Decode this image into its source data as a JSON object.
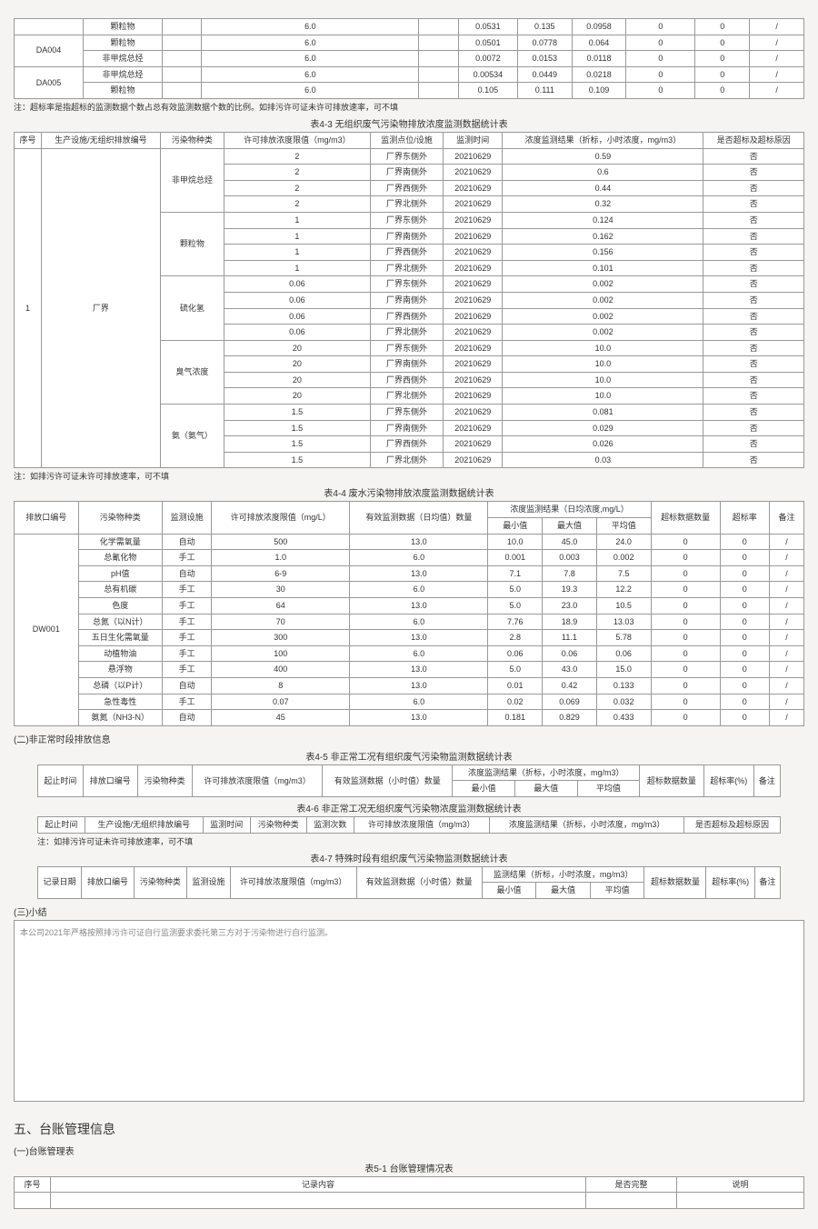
{
  "topTable": {
    "rows": [
      {
        "code": "",
        "p": "颗粒物",
        "c3": "",
        "c4": "6.0",
        "c5": "",
        "c6": "0.0531",
        "c7": "0.135",
        "c8": "0.0958",
        "c9": "0",
        "c10": "0",
        "c11": "/"
      },
      {
        "code": "DA004",
        "p": "颗粒物",
        "c3": "",
        "c4": "6.0",
        "c5": "",
        "c6": "0.0501",
        "c7": "0.0778",
        "c8": "0.064",
        "c9": "0",
        "c10": "0",
        "c11": "/"
      },
      {
        "code": "",
        "p": "非甲烷总烃",
        "c3": "",
        "c4": "6.0",
        "c5": "",
        "c6": "0.0072",
        "c7": "0.0153",
        "c8": "0.0118",
        "c9": "0",
        "c10": "0",
        "c11": "/"
      },
      {
        "code": "DA005",
        "p": "非甲烷总烃",
        "c3": "",
        "c4": "6.0",
        "c5": "",
        "c6": "0.00534",
        "c7": "0.0449",
        "c8": "0.0218",
        "c9": "0",
        "c10": "0",
        "c11": "/"
      },
      {
        "code": "",
        "p": "颗粒物",
        "c3": "",
        "c4": "6.0",
        "c5": "",
        "c6": "0.105",
        "c7": "0.111",
        "c8": "0.109",
        "c9": "0",
        "c10": "0",
        "c11": "/"
      }
    ],
    "note": "注：超标率是指超标的监测数据个数占总有效监测数据个数的比例。如排污许可证未许可排放速率，可不填"
  },
  "table43": {
    "caption": "表4-3 无组织废气污染物排放浓度监测数据统计表",
    "headers": [
      "序号",
      "生产设施/无组织排放编号",
      "污染物种类",
      "许可排放浓度限值（mg/m3）",
      "监测点位/设施",
      "监测时间",
      "浓度监测结果（折标，小时浓度，mg/m3）",
      "是否超标及超标原因"
    ],
    "seq": "1",
    "facility": "厂界",
    "groups": [
      {
        "pollutant": "非甲烷总烃",
        "rows": [
          {
            "limit": "2",
            "loc": "厂界东侧外",
            "time": "20210629",
            "val": "0.59",
            "ex": "否"
          },
          {
            "limit": "2",
            "loc": "厂界南侧外",
            "time": "20210629",
            "val": "0.6",
            "ex": "否"
          },
          {
            "limit": "2",
            "loc": "厂界西侧外",
            "time": "20210629",
            "val": "0.44",
            "ex": "否"
          },
          {
            "limit": "2",
            "loc": "厂界北侧外",
            "time": "20210629",
            "val": "0.32",
            "ex": "否"
          }
        ]
      },
      {
        "pollutant": "颗粒物",
        "rows": [
          {
            "limit": "1",
            "loc": "厂界东侧外",
            "time": "20210629",
            "val": "0.124",
            "ex": "否"
          },
          {
            "limit": "1",
            "loc": "厂界南侧外",
            "time": "20210629",
            "val": "0.162",
            "ex": "否"
          },
          {
            "limit": "1",
            "loc": "厂界西侧外",
            "time": "20210629",
            "val": "0.156",
            "ex": "否"
          },
          {
            "limit": "1",
            "loc": "厂界北侧外",
            "time": "20210629",
            "val": "0.101",
            "ex": "否"
          }
        ]
      },
      {
        "pollutant": "硫化氢",
        "rows": [
          {
            "limit": "0.06",
            "loc": "厂界东侧外",
            "time": "20210629",
            "val": "0.002",
            "ex": "否"
          },
          {
            "limit": "0.06",
            "loc": "厂界南侧外",
            "time": "20210629",
            "val": "0.002",
            "ex": "否"
          },
          {
            "limit": "0.06",
            "loc": "厂界西侧外",
            "time": "20210629",
            "val": "0.002",
            "ex": "否"
          },
          {
            "limit": "0.06",
            "loc": "厂界北侧外",
            "time": "20210629",
            "val": "0.002",
            "ex": "否"
          }
        ]
      },
      {
        "pollutant": "臭气浓度",
        "rows": [
          {
            "limit": "20",
            "loc": "厂界东侧外",
            "time": "20210629",
            "val": "10.0",
            "ex": "否"
          },
          {
            "limit": "20",
            "loc": "厂界南侧外",
            "time": "20210629",
            "val": "10.0",
            "ex": "否"
          },
          {
            "limit": "20",
            "loc": "厂界西侧外",
            "time": "20210629",
            "val": "10.0",
            "ex": "否"
          },
          {
            "limit": "20",
            "loc": "厂界北侧外",
            "time": "20210629",
            "val": "10.0",
            "ex": "否"
          }
        ]
      },
      {
        "pollutant": "氨（氨气）",
        "rows": [
          {
            "limit": "1.5",
            "loc": "厂界东侧外",
            "time": "20210629",
            "val": "0.081",
            "ex": "否"
          },
          {
            "limit": "1.5",
            "loc": "厂界南侧外",
            "time": "20210629",
            "val": "0.029",
            "ex": "否"
          },
          {
            "limit": "1.5",
            "loc": "厂界西侧外",
            "time": "20210629",
            "val": "0.026",
            "ex": "否"
          },
          {
            "limit": "1.5",
            "loc": "厂界北侧外",
            "time": "20210629",
            "val": "0.03",
            "ex": "否"
          }
        ]
      }
    ],
    "note": "注：如排污许可证未许可排放速率，可不填"
  },
  "table44": {
    "caption": "表4-4 废水污染物排放浓度监测数据统计表",
    "h": {
      "c1": "排放口编号",
      "c2": "污染物种类",
      "c3": "监测设施",
      "c4": "许可排放浓度限值（mg/L）",
      "c5": "有效监测数据（日均值）数量",
      "grp": "浓度监测结果（日均浓度,mg/L）",
      "min": "最小值",
      "max": "最大值",
      "avg": "平均值",
      "c9": "超标数据数量",
      "c10": "超标率",
      "c11": "备注"
    },
    "outlet": "DW001",
    "rows": [
      {
        "p": "化学需氧量",
        "f": "自动",
        "lim": "500",
        "n": "13.0",
        "min": "10.0",
        "max": "45.0",
        "avg": "24.0",
        "ex": "0",
        "r": "0",
        "rm": "/"
      },
      {
        "p": "总氰化物",
        "f": "手工",
        "lim": "1.0",
        "n": "6.0",
        "min": "0.001",
        "max": "0.003",
        "avg": "0.002",
        "ex": "0",
        "r": "0",
        "rm": "/"
      },
      {
        "p": "pH值",
        "f": "自动",
        "lim": "6-9",
        "n": "13.0",
        "min": "7.1",
        "max": "7.8",
        "avg": "7.5",
        "ex": "0",
        "r": "0",
        "rm": "/"
      },
      {
        "p": "总有机碳",
        "f": "手工",
        "lim": "30",
        "n": "6.0",
        "min": "5.0",
        "max": "19.3",
        "avg": "12.2",
        "ex": "0",
        "r": "0",
        "rm": "/"
      },
      {
        "p": "色度",
        "f": "手工",
        "lim": "64",
        "n": "13.0",
        "min": "5.0",
        "max": "23.0",
        "avg": "10.5",
        "ex": "0",
        "r": "0",
        "rm": "/"
      },
      {
        "p": "总氮（以N计）",
        "f": "手工",
        "lim": "70",
        "n": "6.0",
        "min": "7.76",
        "max": "18.9",
        "avg": "13.03",
        "ex": "0",
        "r": "0",
        "rm": "/"
      },
      {
        "p": "五日生化需氧量",
        "f": "手工",
        "lim": "300",
        "n": "13.0",
        "min": "2.8",
        "max": "11.1",
        "avg": "5.78",
        "ex": "0",
        "r": "0",
        "rm": "/"
      },
      {
        "p": "动植物油",
        "f": "手工",
        "lim": "100",
        "n": "6.0",
        "min": "0.06",
        "max": "0.06",
        "avg": "0.06",
        "ex": "0",
        "r": "0",
        "rm": "/"
      },
      {
        "p": "悬浮物",
        "f": "手工",
        "lim": "400",
        "n": "13.0",
        "min": "5.0",
        "max": "43.0",
        "avg": "15.0",
        "ex": "0",
        "r": "0",
        "rm": "/"
      },
      {
        "p": "总磷（以P计）",
        "f": "自动",
        "lim": "8",
        "n": "13.0",
        "min": "0.01",
        "max": "0.42",
        "avg": "0.133",
        "ex": "0",
        "r": "0",
        "rm": "/"
      },
      {
        "p": "急性毒性",
        "f": "手工",
        "lim": "0.07",
        "n": "6.0",
        "min": "0.02",
        "max": "0.069",
        "avg": "0.032",
        "ex": "0",
        "r": "0",
        "rm": "/"
      },
      {
        "p": "氨氮（NH3-N）",
        "f": "自动",
        "lim": "45",
        "n": "13.0",
        "min": "0.181",
        "max": "0.829",
        "avg": "0.433",
        "ex": "0",
        "r": "0",
        "rm": "/"
      }
    ]
  },
  "section2": "(二)非正常时段排放信息",
  "table45": {
    "caption": "表4-5 非正常工况有组织废气污染物监测数据统计表",
    "h": [
      "起止时间",
      "排放口编号",
      "污染物种类",
      "许可排放浓度限值（mg/m3）",
      "有效监测数据（小时值）数量",
      "浓度监测结果（折标，小时浓度，mg/m3）",
      "最小值",
      "最大值",
      "平均值",
      "超标数据数量",
      "超标率(%)",
      "备注"
    ]
  },
  "table46": {
    "caption": "表4-6 非正常工况无组织废气污染物浓度监测数据统计表",
    "h": [
      "起止时间",
      "生产设施/无组织排放编号",
      "监测时间",
      "污染物种类",
      "监测次数",
      "许可排放浓度限值（mg/m3）",
      "浓度监测结果（折标，小时浓度，mg/m3）",
      "是否超标及超标原因"
    ],
    "note": "注：如排污许可证未许可排放速率，可不填"
  },
  "table47": {
    "caption": "表4-7 特殊时段有组织废气污染物监测数据统计表",
    "h": {
      "c1": "记录日期",
      "c2": "排放口编号",
      "c3": "污染物种类",
      "c4": "监测设施",
      "c5": "许可排放浓度限值（mg/m3）",
      "c6": "有效监测数据（小时值）数量",
      "grp": "监测结果（折标，小时浓度，mg/m3）",
      "min": "最小值",
      "max": "最大值",
      "avg": "平均值",
      "c10": "超标数据数量",
      "c11": "超标率(%)",
      "c12": "备注"
    }
  },
  "section3": "(三)小结",
  "summary": "本公司2021年严格按照排污许可证自行监测要求委托第三方对于污染物进行自行监测。",
  "section5": "五、台账管理信息",
  "section5sub": "(一)台账管理表",
  "table51": {
    "caption": "表5-1 台账管理情况表",
    "h": [
      "序号",
      "记录内容",
      "是否完整",
      "说明"
    ]
  }
}
